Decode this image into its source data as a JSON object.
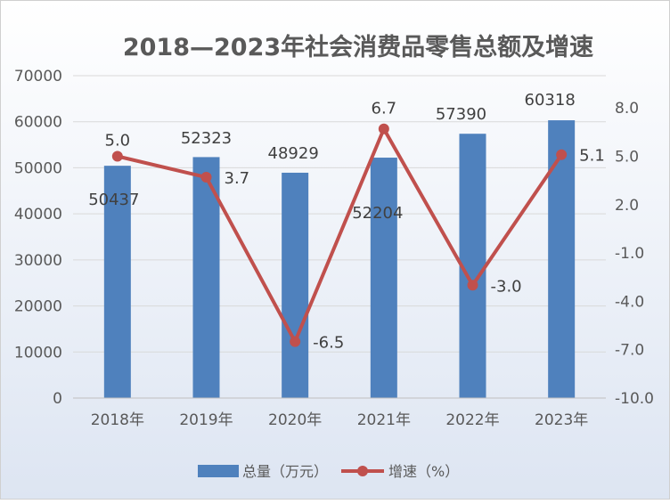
{
  "chart_data": {
    "type": "bar+line",
    "title": "2018—2023年社会消费品零售总额及增速",
    "categories": [
      "2018年",
      "2019年",
      "2020年",
      "2021年",
      "2022年",
      "2023年"
    ],
    "series": [
      {
        "name": "总量（万元）",
        "type": "bar",
        "axis": "left",
        "color": "#4f81bd",
        "values": [
          50437,
          52323,
          48929,
          52204,
          57390,
          60318
        ]
      },
      {
        "name": "增速（%）",
        "type": "line",
        "axis": "right",
        "color": "#c0504d",
        "values": [
          5.0,
          3.7,
          -6.5,
          6.7,
          -3.0,
          5.1
        ]
      }
    ],
    "left_axis": {
      "min": 0,
      "max": 70000,
      "step": 10000,
      "ticks": [
        "0",
        "10000",
        "20000",
        "30000",
        "40000",
        "50000",
        "60000",
        "70000"
      ]
    },
    "right_axis": {
      "min": -10,
      "max": 10,
      "step": 3,
      "ticks": [
        "-10.0",
        "-7.0",
        "-4.0",
        "-1.0",
        "2.0",
        "5.0",
        "8.0"
      ]
    },
    "bar_labels": [
      "50437",
      "52323",
      "48929",
      "52204",
      "57390",
      "60318"
    ],
    "line_labels": [
      "5.0",
      "3.7",
      "-6.5",
      "6.7",
      "-3.0",
      "5.1"
    ],
    "grid": true,
    "legend_position": "bottom"
  }
}
